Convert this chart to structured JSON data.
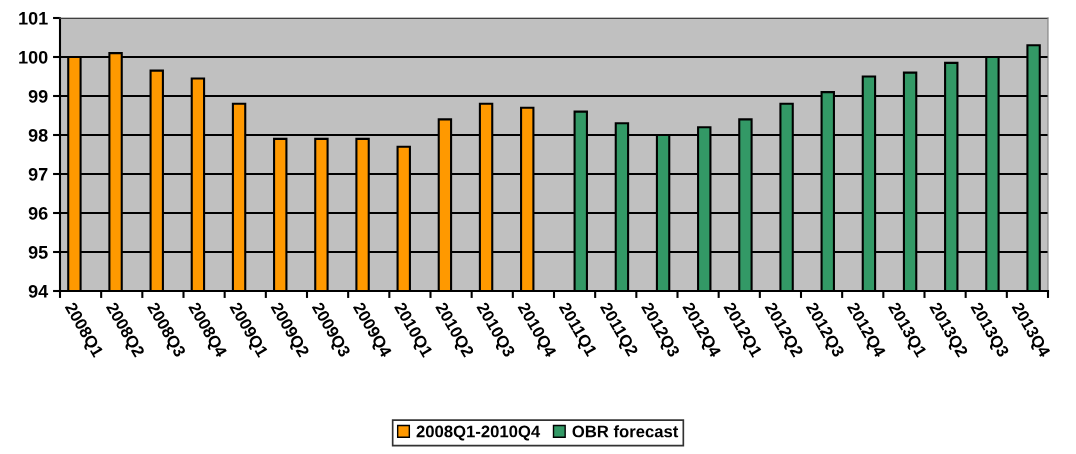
{
  "chart_data": {
    "type": "bar",
    "categories": [
      "2008Q1",
      "2008Q2",
      "2008Q3",
      "2008Q4",
      "2009Q1",
      "2009Q2",
      "2009Q3",
      "2009Q4",
      "2010Q1",
      "2010Q2",
      "2010Q3",
      "2010Q4",
      "2011Q1",
      "2011Q2",
      "2012Q3",
      "2012Q4",
      "2012Q1",
      "2012Q2",
      "2012Q3",
      "2012Q4",
      "2013Q1",
      "2013Q2",
      "2013Q3",
      "2013Q4"
    ],
    "series": [
      {
        "name": "2008Q1-2010Q4",
        "color": "#ff9900",
        "values": [
          100.0,
          100.1,
          99.65,
          99.45,
          98.8,
          97.9,
          97.9,
          97.9,
          97.7,
          98.4,
          98.8,
          98.7,
          null,
          null,
          null,
          null,
          null,
          null,
          null,
          null,
          null,
          null,
          null,
          null
        ]
      },
      {
        "name": "OBR forecast",
        "color": "#339966",
        "values": [
          null,
          null,
          null,
          null,
          null,
          null,
          null,
          null,
          null,
          null,
          null,
          null,
          98.6,
          98.3,
          98.0,
          98.2,
          98.4,
          98.8,
          99.1,
          99.5,
          99.6,
          99.85,
          100.0,
          100.3
        ]
      }
    ],
    "ylim": [
      94,
      101
    ],
    "yticks": [
      94,
      95,
      96,
      97,
      98,
      99,
      100,
      101
    ],
    "grid": "y",
    "legend": "bottom"
  }
}
